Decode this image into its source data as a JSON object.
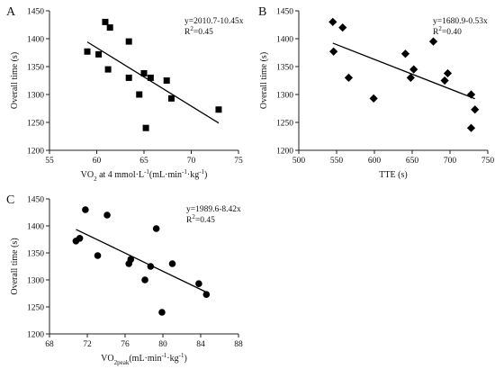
{
  "chart_data": [
    {
      "panel_label": "A",
      "type": "scatter",
      "marker": "square",
      "xlabel": "VO2 at 4 mmol·L-1(mL·min-1·kg-1)",
      "xlabel_parts": [
        {
          "t": "VO"
        },
        {
          "t": "2",
          "sub": true
        },
        {
          "t": " at 4 mmol·L"
        },
        {
          "t": "-1",
          "sup": true
        },
        {
          "t": "(mL·min"
        },
        {
          "t": "-1",
          "sup": true
        },
        {
          "t": "·kg"
        },
        {
          "t": "-1",
          "sup": true
        },
        {
          "t": ")"
        }
      ],
      "ylabel": "Overall time (s)",
      "xlim": [
        55,
        75
      ],
      "ylim": [
        1200,
        1450
      ],
      "xticks": [
        55,
        60,
        65,
        70,
        75
      ],
      "yticks": [
        1200,
        1250,
        1300,
        1350,
        1400,
        1450
      ],
      "equation": "y=2010.7-10.45x",
      "r2_parts": [
        {
          "t": "R"
        },
        {
          "t": "2",
          "sup": true
        },
        {
          "t": "=0.45"
        }
      ],
      "trendline": {
        "intercept": 2010.7,
        "slope": -10.45,
        "x_range": [
          59,
          72.9
        ]
      },
      "points": [
        {
          "x": 60.9,
          "y": 1430
        },
        {
          "x": 61.4,
          "y": 1420
        },
        {
          "x": 59.0,
          "y": 1377
        },
        {
          "x": 60.2,
          "y": 1372
        },
        {
          "x": 63.4,
          "y": 1395
        },
        {
          "x": 61.2,
          "y": 1345
        },
        {
          "x": 63.4,
          "y": 1330
        },
        {
          "x": 65.0,
          "y": 1338
        },
        {
          "x": 65.7,
          "y": 1330
        },
        {
          "x": 64.5,
          "y": 1300
        },
        {
          "x": 67.4,
          "y": 1325
        },
        {
          "x": 67.9,
          "y": 1293
        },
        {
          "x": 65.2,
          "y": 1240
        },
        {
          "x": 72.9,
          "y": 1273
        }
      ]
    },
    {
      "panel_label": "B",
      "type": "scatter",
      "marker": "diamond",
      "xlabel": "TTE (s)",
      "xlabel_parts": [
        {
          "t": "TTE (s)"
        }
      ],
      "ylabel": "Overall time (s)",
      "xlim": [
        500,
        750
      ],
      "ylim": [
        1200,
        1450
      ],
      "xticks": [
        500,
        550,
        600,
        650,
        700,
        750
      ],
      "yticks": [
        1200,
        1250,
        1300,
        1350,
        1400,
        1450
      ],
      "equation": "y=1680.9-0.53x",
      "r2_parts": [
        {
          "t": "R"
        },
        {
          "t": "2",
          "sup": true
        },
        {
          "t": "=0.40"
        }
      ],
      "trendline": {
        "intercept": 1680.9,
        "slope": -0.53,
        "x_range": [
          545,
          733
        ]
      },
      "points": [
        {
          "x": 545,
          "y": 1430
        },
        {
          "x": 558,
          "y": 1420
        },
        {
          "x": 546,
          "y": 1377
        },
        {
          "x": 566,
          "y": 1330
        },
        {
          "x": 599,
          "y": 1293
        },
        {
          "x": 641,
          "y": 1373
        },
        {
          "x": 652,
          "y": 1345
        },
        {
          "x": 648,
          "y": 1330
        },
        {
          "x": 678,
          "y": 1395
        },
        {
          "x": 697,
          "y": 1338
        },
        {
          "x": 693,
          "y": 1325
        },
        {
          "x": 728,
          "y": 1300
        },
        {
          "x": 733,
          "y": 1273
        },
        {
          "x": 728,
          "y": 1240
        }
      ]
    },
    {
      "panel_label": "C",
      "type": "scatter",
      "marker": "circle",
      "xlabel": "VO2peak(mL·min-1·kg-1)",
      "xlabel_parts": [
        {
          "t": "VO"
        },
        {
          "t": "2peak",
          "sub": true
        },
        {
          "t": "(mL·min"
        },
        {
          "t": "-1",
          "sup": true
        },
        {
          "t": "·kg"
        },
        {
          "t": "-1",
          "sup": true
        },
        {
          "t": ")"
        }
      ],
      "ylabel": "Overall time (s)",
      "xlim": [
        68,
        88
      ],
      "ylim": [
        1200,
        1450
      ],
      "xticks": [
        68,
        72,
        76,
        80,
        84,
        88
      ],
      "yticks": [
        1200,
        1250,
        1300,
        1350,
        1400,
        1450
      ],
      "equation": "y=1989.6-8.42x",
      "r2_parts": [
        {
          "t": "R"
        },
        {
          "t": "2",
          "sup": true
        },
        {
          "t": "=0.45"
        }
      ],
      "trendline": {
        "intercept": 1989.6,
        "slope": -8.42,
        "x_range": [
          70.8,
          84.6
        ]
      },
      "points": [
        {
          "x": 71.8,
          "y": 1430
        },
        {
          "x": 74.1,
          "y": 1420
        },
        {
          "x": 70.8,
          "y": 1372
        },
        {
          "x": 71.2,
          "y": 1377
        },
        {
          "x": 73.1,
          "y": 1345
        },
        {
          "x": 76.4,
          "y": 1330
        },
        {
          "x": 76.6,
          "y": 1338
        },
        {
          "x": 79.3,
          "y": 1395
        },
        {
          "x": 78.7,
          "y": 1325
        },
        {
          "x": 78.1,
          "y": 1300
        },
        {
          "x": 81.0,
          "y": 1330
        },
        {
          "x": 83.8,
          "y": 1293
        },
        {
          "x": 79.9,
          "y": 1240
        },
        {
          "x": 84.6,
          "y": 1273
        }
      ]
    }
  ]
}
